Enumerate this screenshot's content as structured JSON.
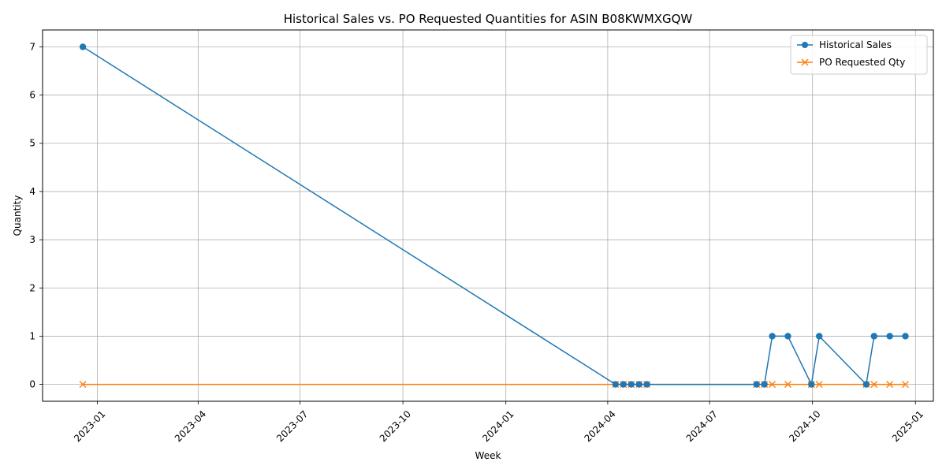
{
  "chart_data": {
    "type": "line",
    "title": "Historical Sales vs. PO Requested Quantities for ASIN B08KWMXGQW",
    "xlabel": "Week",
    "ylabel": "Quantity",
    "xlim": [
      "2022-11-13",
      "2025-01-17"
    ],
    "ylim": [
      -0.35,
      7.35
    ],
    "x_ticks": [
      "2023-01",
      "2023-04",
      "2023-07",
      "2023-10",
      "2024-01",
      "2024-04",
      "2024-07",
      "2024-10",
      "2025-01"
    ],
    "y_ticks": [
      "0",
      "1",
      "2",
      "3",
      "4",
      "5",
      "6",
      "7"
    ],
    "grid": true,
    "legend_position": "top-right",
    "colors": {
      "historical_sales": "#1f77b4",
      "po_requested": "#ff7f0e"
    },
    "series": [
      {
        "name": "Historical Sales",
        "marker": "circle",
        "color": "#1f77b4",
        "points": [
          {
            "x": "2022-12-19",
            "y": 7
          },
          {
            "x": "2024-04-08",
            "y": 0
          },
          {
            "x": "2024-04-15",
            "y": 0
          },
          {
            "x": "2024-04-22",
            "y": 0
          },
          {
            "x": "2024-04-29",
            "y": 0
          },
          {
            "x": "2024-05-06",
            "y": 0
          },
          {
            "x": "2024-08-12",
            "y": 0
          },
          {
            "x": "2024-08-19",
            "y": 0
          },
          {
            "x": "2024-08-26",
            "y": 1
          },
          {
            "x": "2024-09-09",
            "y": 1
          },
          {
            "x": "2024-09-30",
            "y": 0
          },
          {
            "x": "2024-10-07",
            "y": 1
          },
          {
            "x": "2024-11-18",
            "y": 0
          },
          {
            "x": "2024-11-25",
            "y": 1
          },
          {
            "x": "2024-12-09",
            "y": 1
          },
          {
            "x": "2024-12-23",
            "y": 1
          }
        ]
      },
      {
        "name": "PO Requested Qty",
        "marker": "x",
        "color": "#ff7f0e",
        "points": [
          {
            "x": "2022-12-19",
            "y": 0
          },
          {
            "x": "2024-04-08",
            "y": 0
          },
          {
            "x": "2024-04-15",
            "y": 0
          },
          {
            "x": "2024-04-22",
            "y": 0
          },
          {
            "x": "2024-04-29",
            "y": 0
          },
          {
            "x": "2024-05-06",
            "y": 0
          },
          {
            "x": "2024-08-12",
            "y": 0
          },
          {
            "x": "2024-08-19",
            "y": 0
          },
          {
            "x": "2024-08-26",
            "y": 0
          },
          {
            "x": "2024-09-09",
            "y": 0
          },
          {
            "x": "2024-09-30",
            "y": 0
          },
          {
            "x": "2024-10-07",
            "y": 0
          },
          {
            "x": "2024-11-18",
            "y": 0
          },
          {
            "x": "2024-11-25",
            "y": 0
          },
          {
            "x": "2024-12-09",
            "y": 0
          },
          {
            "x": "2024-12-23",
            "y": 0
          }
        ]
      }
    ]
  }
}
